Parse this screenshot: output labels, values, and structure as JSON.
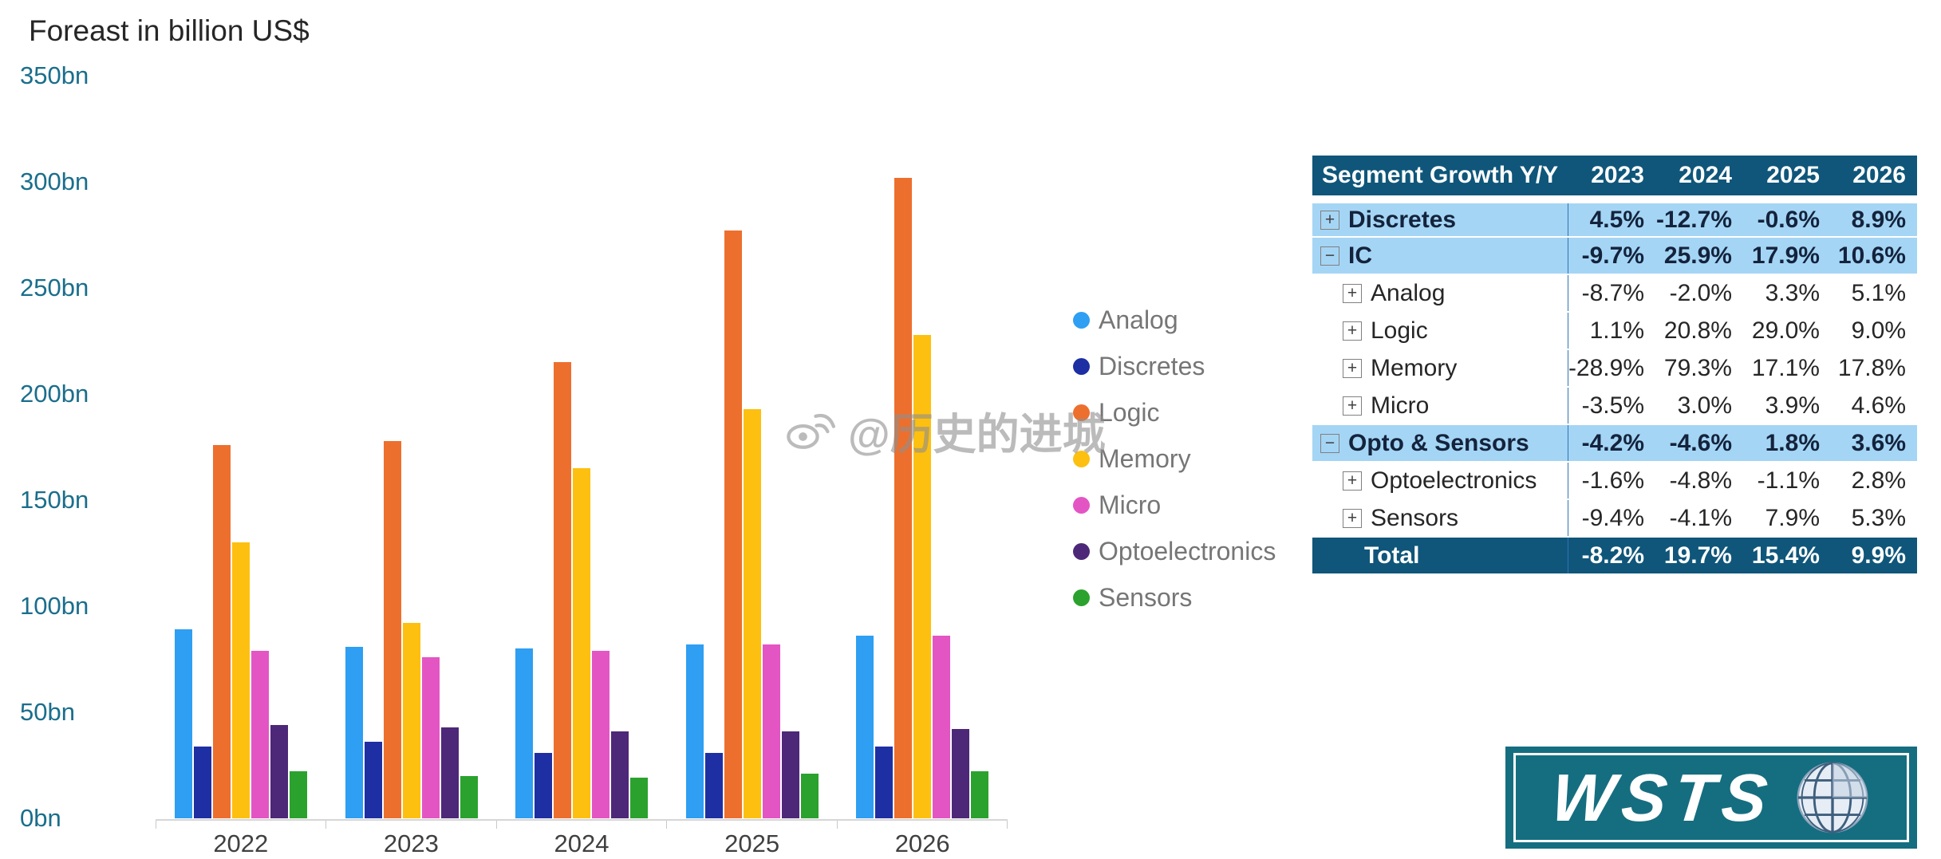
{
  "title": "Foreast in billion US$",
  "chart_data": {
    "type": "bar",
    "title": "Foreast in billion US$",
    "unit": "billion US$",
    "categories": [
      "2022",
      "2023",
      "2024",
      "2025",
      "2026"
    ],
    "series": [
      {
        "name": "Analog",
        "color": "#2e9ff2",
        "values": [
          89,
          81,
          80,
          82,
          86
        ]
      },
      {
        "name": "Discretes",
        "color": "#1e2fa3",
        "values": [
          34,
          36,
          31,
          31,
          34
        ]
      },
      {
        "name": "Logic",
        "color": "#ed6f2d",
        "values": [
          176,
          178,
          215,
          277,
          302
        ]
      },
      {
        "name": "Memory",
        "color": "#fdc010",
        "values": [
          130,
          92,
          165,
          193,
          228
        ]
      },
      {
        "name": "Micro",
        "color": "#e455c4",
        "values": [
          79,
          76,
          79,
          82,
          86
        ]
      },
      {
        "name": "Optoelectronics",
        "color": "#4d2878",
        "values": [
          44,
          43,
          41,
          41,
          42
        ]
      },
      {
        "name": "Sensors",
        "color": "#2ba22e",
        "values": [
          22,
          20,
          19,
          21,
          22
        ]
      }
    ],
    "ylim": [
      0,
      350
    ],
    "yticks": [
      {
        "value": 0,
        "label": "0bn"
      },
      {
        "value": 50,
        "label": "50bn"
      },
      {
        "value": 100,
        "label": "100bn"
      },
      {
        "value": 150,
        "label": "150bn"
      },
      {
        "value": 200,
        "label": "200bn"
      },
      {
        "value": 250,
        "label": "250bn"
      },
      {
        "value": 300,
        "label": "300bn"
      },
      {
        "value": 350,
        "label": "350bn"
      }
    ],
    "grid": false,
    "legend_position": "right"
  },
  "table": {
    "header": [
      "Segment Growth Y/Y",
      "2023",
      "2024",
      "2025",
      "2026"
    ],
    "rows": [
      {
        "label": "Discretes",
        "style": "group",
        "icon": "plus",
        "values": [
          "4.5%",
          "-12.7%",
          "-0.6%",
          "8.9%"
        ]
      },
      {
        "label": "IC",
        "style": "group",
        "icon": "minus",
        "values": [
          "-9.7%",
          "25.9%",
          "17.9%",
          "10.6%"
        ]
      },
      {
        "label": "Analog",
        "style": "child",
        "icon": "plus",
        "values": [
          "-8.7%",
          "-2.0%",
          "3.3%",
          "5.1%"
        ]
      },
      {
        "label": "Logic",
        "style": "child",
        "icon": "plus",
        "values": [
          "1.1%",
          "20.8%",
          "29.0%",
          "9.0%"
        ]
      },
      {
        "label": "Memory",
        "style": "child",
        "icon": "plus",
        "values": [
          "-28.9%",
          "79.3%",
          "17.1%",
          "17.8%"
        ]
      },
      {
        "label": "Micro",
        "style": "child",
        "icon": "plus",
        "values": [
          "-3.5%",
          "3.0%",
          "3.9%",
          "4.6%"
        ]
      },
      {
        "label": "Opto & Sensors",
        "style": "group",
        "icon": "minus",
        "values": [
          "-4.2%",
          "-4.6%",
          "1.8%",
          "3.6%"
        ]
      },
      {
        "label": "Optoelectronics",
        "style": "child",
        "icon": "plus",
        "values": [
          "-1.6%",
          "-4.8%",
          "-1.1%",
          "2.8%"
        ]
      },
      {
        "label": "Sensors",
        "style": "child",
        "icon": "plus",
        "values": [
          "-9.4%",
          "-4.1%",
          "7.9%",
          "5.3%"
        ]
      },
      {
        "label": "Total",
        "style": "total",
        "icon": null,
        "values": [
          "-8.2%",
          "19.7%",
          "15.4%",
          "9.9%"
        ]
      }
    ]
  },
  "watermark": {
    "text": "@历史的进城"
  },
  "logo": {
    "text": "WSTS"
  },
  "colors": {
    "axis_label": "#1a6e8c",
    "table_header_bg": "#0f567a",
    "table_group_bg": "#a5d5f5",
    "table_total_bg": "#0f567a",
    "negative": "#c00000",
    "positive": "#3a9a35",
    "logo_bg": "#156e80"
  }
}
